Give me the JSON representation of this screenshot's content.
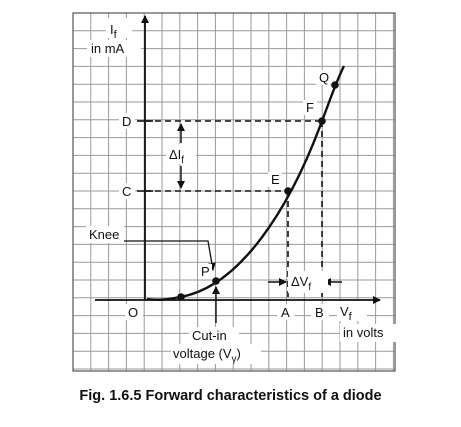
{
  "axis": {
    "y_symbol": "I",
    "y_symbol_sub": "f",
    "y_unit": "in mA",
    "x_symbol": "V",
    "x_symbol_sub": "f",
    "x_unit": "in volts",
    "origin": "O"
  },
  "levels": {
    "d": "D",
    "c": "C"
  },
  "ticks": {
    "a": "A",
    "b": "B"
  },
  "points": {
    "p": "P",
    "e": "E",
    "f": "F",
    "q": "Q"
  },
  "deltas": {
    "delta_i": "ΔI",
    "delta_i_sub": "f",
    "delta_v": "ΔV",
    "delta_v_sub": "f"
  },
  "annotations": {
    "knee": "Knee",
    "cutin_line1": "Cut-in",
    "cutin_line2": "voltage (V",
    "cutin_sub": "γ",
    "cutin_close": ")"
  },
  "caption": "Fig. 1.6.5 Forward characteristics of a diode",
  "colors": {
    "ink": "#111111",
    "grid": "#9a9a9a"
  }
}
